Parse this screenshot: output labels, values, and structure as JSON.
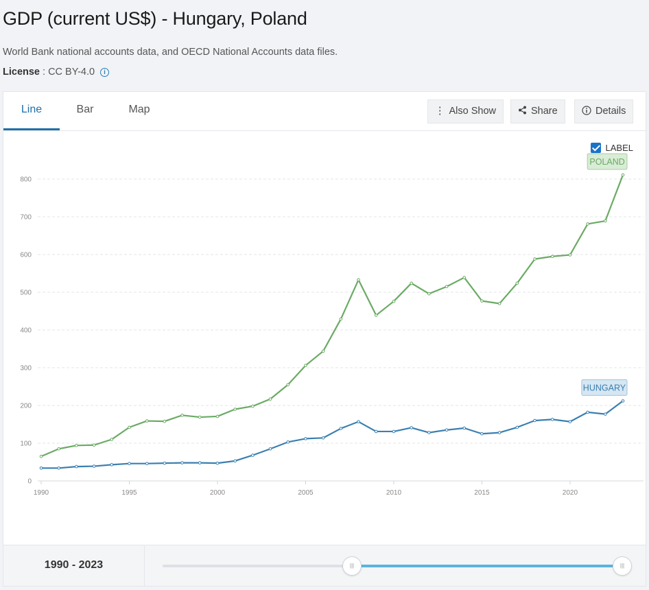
{
  "header": {
    "title": "GDP (current US$) - Hungary, Poland",
    "source": "World Bank national accounts data, and OECD National Accounts data files.",
    "license_label": "License",
    "license_value": " : CC BY-4.0"
  },
  "tabs": [
    {
      "label": "Line",
      "active": true
    },
    {
      "label": "Bar",
      "active": false
    },
    {
      "label": "Map",
      "active": false
    }
  ],
  "toolbar": {
    "also_show_label": "Also Show",
    "share_label": "Share",
    "details_label": "Details"
  },
  "label_toggle": {
    "text": "LABEL",
    "checked": true
  },
  "chart_data": {
    "type": "line",
    "title": "",
    "xlabel": "",
    "ylabel": "",
    "x": [
      1990,
      1991,
      1992,
      1993,
      1994,
      1995,
      1996,
      1997,
      1998,
      1999,
      2000,
      2001,
      2002,
      2003,
      2004,
      2005,
      2006,
      2007,
      2008,
      2009,
      2010,
      2011,
      2012,
      2013,
      2014,
      2015,
      2016,
      2017,
      2018,
      2019,
      2020,
      2021,
      2022,
      2023
    ],
    "xticks": [
      1990,
      1995,
      2000,
      2005,
      2010,
      2015,
      2020
    ],
    "yticks": [
      0,
      100,
      200,
      300,
      400,
      500,
      600,
      700,
      800
    ],
    "ylim": [
      0,
      800
    ],
    "grid": true,
    "series": [
      {
        "name": "POLAND",
        "color": "#6aaa64",
        "label_bg": "#d9ecd6",
        "label_border": "#a5cf9f",
        "values": [
          65,
          85,
          94,
          95,
          110,
          142,
          159,
          158,
          174,
          169,
          171,
          190,
          198,
          217,
          255,
          306,
          344,
          429,
          533,
          439,
          476,
          524,
          496,
          515,
          539,
          477,
          470,
          524,
          588,
          595,
          599,
          681,
          689,
          811
        ]
      },
      {
        "name": "HUNGARY",
        "color": "#3a7fb0",
        "label_bg": "#d6e6f2",
        "label_border": "#9ec3de",
        "values": [
          34,
          34,
          38,
          39,
          43,
          46,
          46,
          47,
          48,
          48,
          47,
          53,
          68,
          85,
          103,
          112,
          114,
          139,
          157,
          131,
          131,
          141,
          128,
          135,
          140,
          125,
          128,
          142,
          160,
          163,
          157,
          182,
          177,
          212
        ]
      }
    ]
  },
  "footer": {
    "range_text": "1990 - 2023",
    "handle_glyph": "|||",
    "range_start": 1990,
    "range_end": 2023
  }
}
